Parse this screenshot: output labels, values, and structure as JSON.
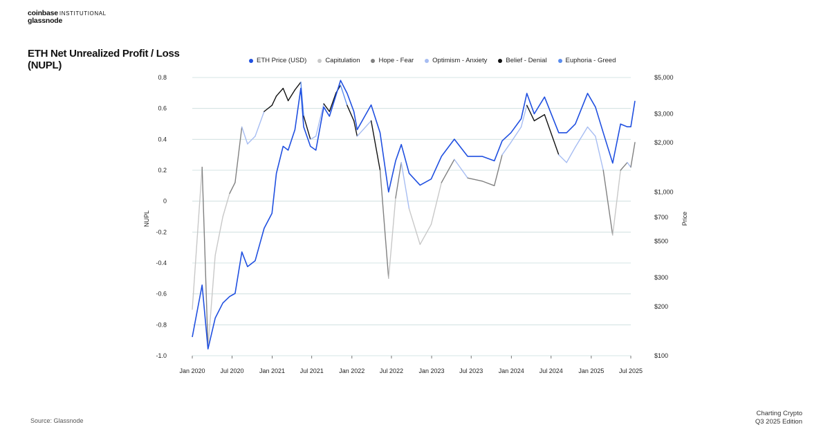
{
  "brand": {
    "line1_bold": "coinbase",
    "line1_rest": "INSTITUTIONAL",
    "line2": "glassnode"
  },
  "footer": {
    "source": "Source: Glassnode",
    "edition_line1": "Charting Crypto",
    "edition_line2": "Q3 2025 Edition"
  },
  "chart_data": {
    "type": "line",
    "title": "ETH Net Unrealized Profit / Loss (NUPL)",
    "ylabel": "NUPL",
    "y2label": "Price",
    "ylim": [
      -1.0,
      0.8
    ],
    "y2_scale": "log",
    "y2lim": [
      100,
      5000
    ],
    "grid": true,
    "legend_position": "top",
    "x_ticks": [
      "Jan 2020",
      "Jul 2020",
      "Jan 2021",
      "Jul 2021",
      "Jan 2022",
      "Jul 2022",
      "Jan 2023",
      "Jul 2023",
      "Jan 2024",
      "Jul 2024",
      "Jan 2025",
      "Jul 2025"
    ],
    "y_ticks": [
      "0.8",
      "0.6",
      "0.4",
      "0.2",
      "0",
      "-0.2",
      "-0.4",
      "-0.6",
      "-0.8",
      "-1.0"
    ],
    "y_tick_values": [
      0.8,
      0.6,
      0.4,
      0.2,
      0,
      -0.2,
      -0.4,
      -0.6,
      -0.8,
      -1.0
    ],
    "y2_ticks": [
      "$5,000",
      "$3,000",
      "$2,000",
      "$1,000",
      "$700",
      "$500",
      "$300",
      "$200",
      "$100"
    ],
    "y2_tick_values": [
      5000,
      3000,
      2000,
      1000,
      700,
      500,
      300,
      200,
      100
    ],
    "legend": [
      {
        "label": "ETH Price (USD)",
        "color": "#1f4fe0"
      },
      {
        "label": "Capitulation",
        "color": "#c8c8c8"
      },
      {
        "label": "Hope - Fear",
        "color": "#808080"
      },
      {
        "label": "Optimism - Anxiety",
        "color": "#a7bdf2"
      },
      {
        "label": "Belief - Denial",
        "color": "#111111"
      },
      {
        "label": "Euphoria - Greed",
        "color": "#5b8dee"
      }
    ],
    "price_series": {
      "name": "ETH Price (USD)",
      "color": "#1f4fe0",
      "points": [
        [
          "2020-01-01",
          130
        ],
        [
          "2020-02-15",
          270
        ],
        [
          "2020-03-13",
          110
        ],
        [
          "2020-04-15",
          170
        ],
        [
          "2020-05-20",
          210
        ],
        [
          "2020-06-20",
          230
        ],
        [
          "2020-07-15",
          240
        ],
        [
          "2020-08-15",
          430
        ],
        [
          "2020-09-10",
          350
        ],
        [
          "2020-10-15",
          380
        ],
        [
          "2020-11-25",
          600
        ],
        [
          "2020-12-31",
          740
        ],
        [
          "2021-01-20",
          1300
        ],
        [
          "2021-02-20",
          1900
        ],
        [
          "2021-03-15",
          1800
        ],
        [
          "2021-04-15",
          2400
        ],
        [
          "2021-05-12",
          4300
        ],
        [
          "2021-05-25",
          2500
        ],
        [
          "2021-06-25",
          1900
        ],
        [
          "2021-07-20",
          1800
        ],
        [
          "2021-08-25",
          3300
        ],
        [
          "2021-09-20",
          2900
        ],
        [
          "2021-10-20",
          3900
        ],
        [
          "2021-11-10",
          4800
        ],
        [
          "2021-12-10",
          4000
        ],
        [
          "2022-01-10",
          3100
        ],
        [
          "2022-01-25",
          2400
        ],
        [
          "2022-03-30",
          3400
        ],
        [
          "2022-05-10",
          2300
        ],
        [
          "2022-06-18",
          1000
        ],
        [
          "2022-07-20",
          1550
        ],
        [
          "2022-08-15",
          1950
        ],
        [
          "2022-09-20",
          1300
        ],
        [
          "2022-11-09",
          1100
        ],
        [
          "2022-12-30",
          1200
        ],
        [
          "2023-02-15",
          1650
        ],
        [
          "2023-04-15",
          2100
        ],
        [
          "2023-06-15",
          1650
        ],
        [
          "2023-08-20",
          1650
        ],
        [
          "2023-10-15",
          1550
        ],
        [
          "2023-11-20",
          2050
        ],
        [
          "2023-12-30",
          2300
        ],
        [
          "2024-02-15",
          2800
        ],
        [
          "2024-03-12",
          4000
        ],
        [
          "2024-04-15",
          3000
        ],
        [
          "2024-06-01",
          3800
        ],
        [
          "2024-08-05",
          2300
        ],
        [
          "2024-09-10",
          2300
        ],
        [
          "2024-10-20",
          2600
        ],
        [
          "2024-12-15",
          4000
        ],
        [
          "2025-01-20",
          3300
        ],
        [
          "2025-02-25",
          2300
        ],
        [
          "2025-04-09",
          1500
        ],
        [
          "2025-05-15",
          2600
        ],
        [
          "2025-06-15",
          2500
        ],
        [
          "2025-07-01",
          2500
        ],
        [
          "2025-07-20",
          3600
        ]
      ]
    },
    "nupl_series": {
      "name": "NUPL",
      "points": [
        [
          "2020-01-01",
          -0.7,
          "Capitulation"
        ],
        [
          "2020-02-15",
          0.22,
          "Hope - Fear"
        ],
        [
          "2020-03-13",
          -0.95,
          "Capitulation"
        ],
        [
          "2020-04-15",
          -0.35,
          "Capitulation"
        ],
        [
          "2020-05-20",
          -0.1,
          "Capitulation"
        ],
        [
          "2020-06-20",
          0.05,
          "Hope - Fear"
        ],
        [
          "2020-07-15",
          0.12,
          "Hope - Fear"
        ],
        [
          "2020-08-15",
          0.48,
          "Optimism - Anxiety"
        ],
        [
          "2020-09-10",
          0.37,
          "Optimism - Anxiety"
        ],
        [
          "2020-10-15",
          0.42,
          "Optimism - Anxiety"
        ],
        [
          "2020-11-25",
          0.58,
          "Belief - Denial"
        ],
        [
          "2020-12-31",
          0.62,
          "Belief - Denial"
        ],
        [
          "2021-01-20",
          0.68,
          "Belief - Denial"
        ],
        [
          "2021-02-20",
          0.73,
          "Belief - Denial"
        ],
        [
          "2021-03-15",
          0.65,
          "Belief - Denial"
        ],
        [
          "2021-04-15",
          0.72,
          "Belief - Denial"
        ],
        [
          "2021-05-12",
          0.77,
          "Euphoria - Greed"
        ],
        [
          "2021-05-25",
          0.55,
          "Belief - Denial"
        ],
        [
          "2021-06-25",
          0.4,
          "Optimism - Anxiety"
        ],
        [
          "2021-07-20",
          0.42,
          "Optimism - Anxiety"
        ],
        [
          "2021-08-25",
          0.63,
          "Belief - Denial"
        ],
        [
          "2021-09-20",
          0.58,
          "Belief - Denial"
        ],
        [
          "2021-10-20",
          0.7,
          "Belief - Denial"
        ],
        [
          "2021-11-10",
          0.75,
          "Euphoria - Greed"
        ],
        [
          "2021-12-10",
          0.62,
          "Belief - Denial"
        ],
        [
          "2022-01-10",
          0.52,
          "Belief - Denial"
        ],
        [
          "2022-01-25",
          0.42,
          "Optimism - Anxiety"
        ],
        [
          "2022-03-30",
          0.52,
          "Belief - Denial"
        ],
        [
          "2022-05-10",
          0.2,
          "Hope - Fear"
        ],
        [
          "2022-06-18",
          -0.5,
          "Capitulation"
        ],
        [
          "2022-07-20",
          0.02,
          "Hope - Fear"
        ],
        [
          "2022-08-15",
          0.25,
          "Optimism - Anxiety"
        ],
        [
          "2022-09-20",
          -0.05,
          "Capitulation"
        ],
        [
          "2022-11-09",
          -0.28,
          "Capitulation"
        ],
        [
          "2022-12-30",
          -0.15,
          "Capitulation"
        ],
        [
          "2023-02-15",
          0.12,
          "Hope - Fear"
        ],
        [
          "2023-04-15",
          0.27,
          "Optimism - Anxiety"
        ],
        [
          "2023-06-15",
          0.15,
          "Hope - Fear"
        ],
        [
          "2023-08-20",
          0.13,
          "Hope - Fear"
        ],
        [
          "2023-10-15",
          0.1,
          "Hope - Fear"
        ],
        [
          "2023-11-20",
          0.3,
          "Optimism - Anxiety"
        ],
        [
          "2023-12-30",
          0.38,
          "Optimism - Anxiety"
        ],
        [
          "2024-02-15",
          0.48,
          "Optimism - Anxiety"
        ],
        [
          "2024-03-12",
          0.62,
          "Belief - Denial"
        ],
        [
          "2024-04-15",
          0.52,
          "Belief - Denial"
        ],
        [
          "2024-06-01",
          0.56,
          "Belief - Denial"
        ],
        [
          "2024-08-05",
          0.3,
          "Optimism - Anxiety"
        ],
        [
          "2024-09-10",
          0.25,
          "Optimism - Anxiety"
        ],
        [
          "2024-10-20",
          0.35,
          "Optimism - Anxiety"
        ],
        [
          "2024-12-15",
          0.48,
          "Optimism - Anxiety"
        ],
        [
          "2025-01-20",
          0.42,
          "Optimism - Anxiety"
        ],
        [
          "2025-02-25",
          0.2,
          "Hope - Fear"
        ],
        [
          "2025-04-09",
          -0.22,
          "Capitulation"
        ],
        [
          "2025-05-15",
          0.2,
          "Hope - Fear"
        ],
        [
          "2025-06-15",
          0.25,
          "Optimism - Anxiety"
        ],
        [
          "2025-07-01",
          0.22,
          "Hope - Fear"
        ],
        [
          "2025-07-20",
          0.38,
          "Optimism - Anxiety"
        ]
      ]
    }
  }
}
